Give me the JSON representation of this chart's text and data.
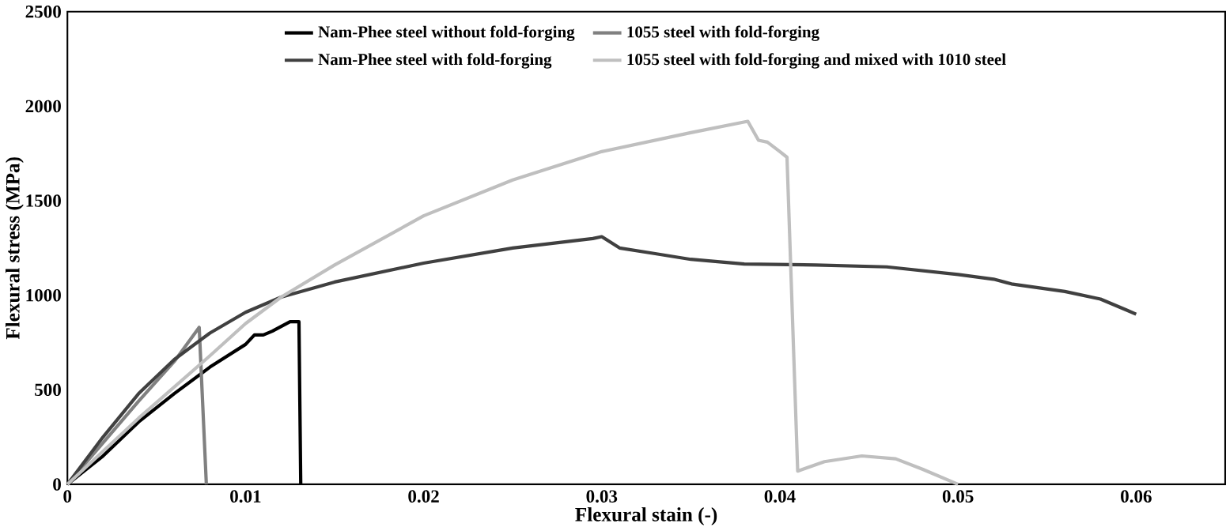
{
  "chart_data": {
    "type": "line",
    "xlabel": "Flexural stain (-)",
    "ylabel": "Flexural stress (MPa)",
    "xlim": [
      0,
      0.065
    ],
    "ylim": [
      0,
      2500
    ],
    "xticks": [
      0,
      0.01,
      0.02,
      0.03,
      0.04,
      0.05,
      0.06
    ],
    "yticks": [
      0,
      500,
      1000,
      1500,
      2000,
      2500
    ],
    "grid": false,
    "legend": "top",
    "marker": "none",
    "line_style": "solid",
    "series": [
      {
        "name": "Nam-Phee steel without fold-forging",
        "color": "#000000",
        "x": [
          0,
          0.002,
          0.004,
          0.006,
          0.008,
          0.01,
          0.0105,
          0.011,
          0.0115,
          0.0125,
          0.013,
          0.0131
        ],
        "values": [
          0,
          150,
          330,
          480,
          620,
          740,
          790,
          790,
          810,
          860,
          860,
          0
        ]
      },
      {
        "name": "1055 steel with fold-forging",
        "color": "#808080",
        "x": [
          0,
          0.002,
          0.004,
          0.006,
          0.0074,
          0.0078
        ],
        "values": [
          0,
          220,
          440,
          650,
          830,
          0
        ]
      },
      {
        "name": "Nam-Phee steel with fold-forging",
        "color": "#404040",
        "x": [
          0,
          0.002,
          0.004,
          0.006,
          0.008,
          0.01,
          0.012,
          0.015,
          0.02,
          0.025,
          0.0295,
          0.03,
          0.031,
          0.033,
          0.035,
          0.038,
          0.042,
          0.046,
          0.05,
          0.052,
          0.053,
          0.056,
          0.058,
          0.0595,
          0.06
        ],
        "values": [
          0,
          250,
          480,
          660,
          800,
          910,
          990,
          1070,
          1170,
          1250,
          1300,
          1310,
          1250,
          1220,
          1190,
          1165,
          1160,
          1150,
          1110,
          1085,
          1060,
          1020,
          980,
          920,
          900
        ]
      },
      {
        "name": "1055 steel with fold-forging and mixed with 1010 steel",
        "color": "#bfbfbf",
        "x": [
          0,
          0.004,
          0.008,
          0.01,
          0.012,
          0.015,
          0.02,
          0.025,
          0.03,
          0.035,
          0.0382,
          0.0388,
          0.0393,
          0.04,
          0.0404,
          0.041,
          0.0425,
          0.0446,
          0.0465,
          0.048,
          0.05
        ],
        "values": [
          0,
          350,
          680,
          850,
          990,
          1160,
          1420,
          1610,
          1760,
          1860,
          1920,
          1820,
          1810,
          1760,
          1730,
          70,
          120,
          150,
          135,
          80,
          0
        ]
      }
    ]
  }
}
